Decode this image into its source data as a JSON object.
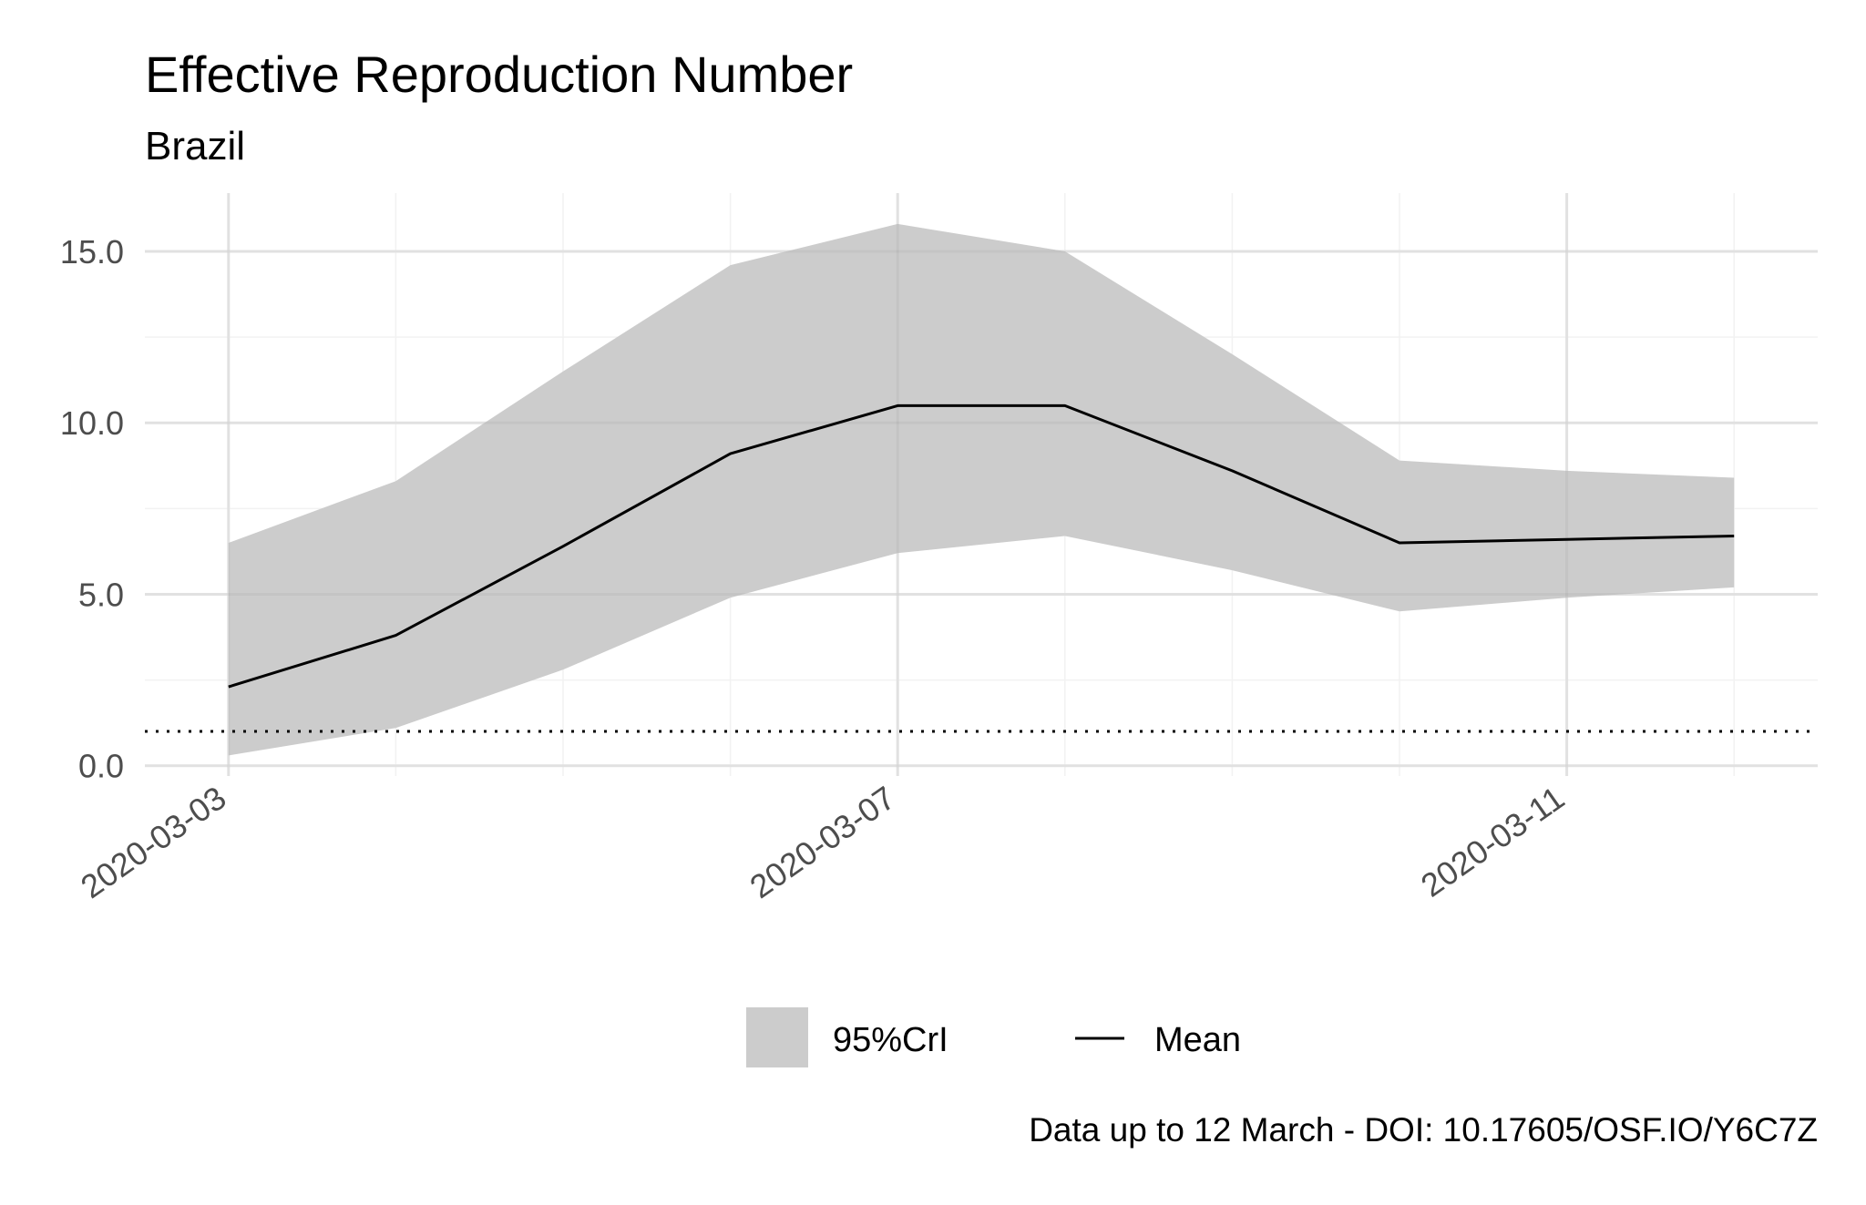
{
  "chart_data": {
    "type": "line",
    "title": "Effective Reproduction Number",
    "subtitle": "Brazil",
    "caption": "Data up to 12 March - DOI: 10.17605/OSF.IO/Y6C7Z",
    "xlabel": "",
    "ylabel": "",
    "x": [
      "2020-03-03",
      "2020-03-04",
      "2020-03-05",
      "2020-03-06",
      "2020-03-07",
      "2020-03-08",
      "2020-03-09",
      "2020-03-10",
      "2020-03-11",
      "2020-03-12"
    ],
    "x_ticks": [
      "2020-03-03",
      "2020-03-07",
      "2020-03-11"
    ],
    "x_range": [
      "2020-03-02T12:00",
      "2020-03-12T12:00"
    ],
    "y_ticks": [
      "0.0",
      "5.0",
      "10.0",
      "15.0"
    ],
    "ylim": [
      -0.3,
      16.7
    ],
    "reference_line": {
      "y": 1,
      "style": "dotted"
    },
    "grid": true,
    "legend_position": "bottom",
    "series": [
      {
        "name": "95%CrI",
        "kind": "ribbon",
        "lower": [
          0.3,
          1.1,
          2.8,
          4.9,
          6.2,
          6.7,
          5.7,
          4.5,
          4.9,
          5.2
        ],
        "upper": [
          6.5,
          8.3,
          11.5,
          14.6,
          15.8,
          15.0,
          12.0,
          8.9,
          8.6,
          8.4
        ],
        "color": "#cccccc"
      },
      {
        "name": "Mean",
        "kind": "line",
        "values": [
          2.3,
          3.8,
          6.4,
          9.1,
          10.5,
          10.5,
          8.6,
          6.5,
          6.6,
          6.7
        ],
        "color": "#000000"
      }
    ]
  }
}
